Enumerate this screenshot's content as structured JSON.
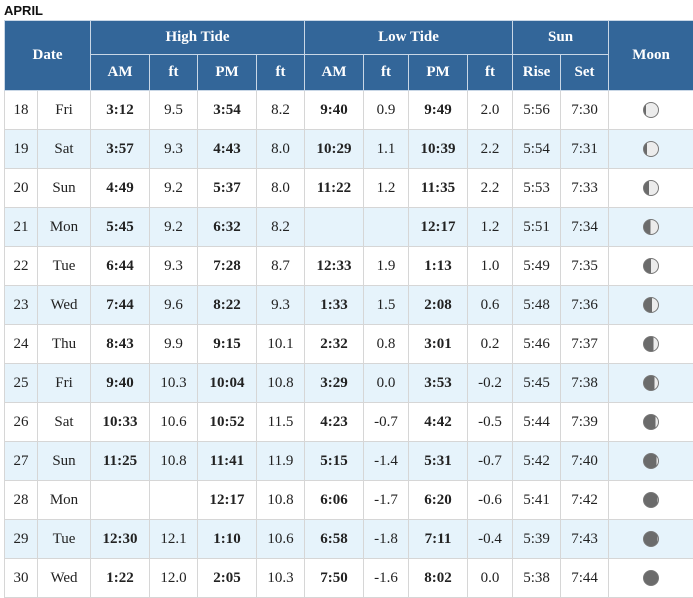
{
  "month": "APRIL",
  "headers": {
    "date": "Date",
    "high_tide": "High Tide",
    "low_tide": "Low Tide",
    "sun": "Sun",
    "moon": "Moon",
    "am": "AM",
    "ft": "ft",
    "pm": "PM",
    "rise": "Rise",
    "set": "Set"
  },
  "rows": [
    {
      "day": "18",
      "dow": "Fri",
      "h_am": "3:12",
      "h_am_ft": "9.5",
      "h_pm": "3:54",
      "h_pm_ft": "8.2",
      "l_am": "9:40",
      "l_am_ft": "0.9",
      "l_pm": "9:49",
      "l_pm_ft": "2.0",
      "rise": "5:56",
      "set": "7:30",
      "moon": 0.85
    },
    {
      "day": "19",
      "dow": "Sat",
      "h_am": "3:57",
      "h_am_ft": "9.3",
      "h_pm": "4:43",
      "h_pm_ft": "8.0",
      "l_am": "10:29",
      "l_am_ft": "1.1",
      "l_pm": "10:39",
      "l_pm_ft": "2.2",
      "rise": "5:54",
      "set": "7:31",
      "moon": 0.78
    },
    {
      "day": "20",
      "dow": "Sun",
      "h_am": "4:49",
      "h_am_ft": "9.2",
      "h_pm": "5:37",
      "h_pm_ft": "8.0",
      "l_am": "11:22",
      "l_am_ft": "1.2",
      "l_pm": "11:35",
      "l_pm_ft": "2.2",
      "rise": "5:53",
      "set": "7:33",
      "moon": 0.65
    },
    {
      "day": "21",
      "dow": "Mon",
      "h_am": "5:45",
      "h_am_ft": "9.2",
      "h_pm": "6:32",
      "h_pm_ft": "8.2",
      "l_am": "",
      "l_am_ft": "",
      "l_pm": "12:17",
      "l_pm_ft": "1.2",
      "rise": "5:51",
      "set": "7:34",
      "moon": 0.55
    },
    {
      "day": "22",
      "dow": "Tue",
      "h_am": "6:44",
      "h_am_ft": "9.3",
      "h_pm": "7:28",
      "h_pm_ft": "8.7",
      "l_am": "12:33",
      "l_am_ft": "1.9",
      "l_pm": "1:13",
      "l_pm_ft": "1.0",
      "rise": "5:49",
      "set": "7:35",
      "moon": 0.5
    },
    {
      "day": "23",
      "dow": "Wed",
      "h_am": "7:44",
      "h_am_ft": "9.6",
      "h_pm": "8:22",
      "h_pm_ft": "9.3",
      "l_am": "1:33",
      "l_am_ft": "1.5",
      "l_pm": "2:08",
      "l_pm_ft": "0.6",
      "rise": "5:48",
      "set": "7:36",
      "moon": 0.42
    },
    {
      "day": "24",
      "dow": "Thu",
      "h_am": "8:43",
      "h_am_ft": "9.9",
      "h_pm": "9:15",
      "h_pm_ft": "10.1",
      "l_am": "2:32",
      "l_am_ft": "0.8",
      "l_pm": "3:01",
      "l_pm_ft": "0.2",
      "rise": "5:46",
      "set": "7:37",
      "moon": 0.33
    },
    {
      "day": "25",
      "dow": "Fri",
      "h_am": "9:40",
      "h_am_ft": "10.3",
      "h_pm": "10:04",
      "h_pm_ft": "10.8",
      "l_am": "3:29",
      "l_am_ft": "0.0",
      "l_pm": "3:53",
      "l_pm_ft": "-0.2",
      "rise": "5:45",
      "set": "7:38",
      "moon": 0.25
    },
    {
      "day": "26",
      "dow": "Sat",
      "h_am": "10:33",
      "h_am_ft": "10.6",
      "h_pm": "10:52",
      "h_pm_ft": "11.5",
      "l_am": "4:23",
      "l_am_ft": "-0.7",
      "l_pm": "4:42",
      "l_pm_ft": "-0.5",
      "rise": "5:44",
      "set": "7:39",
      "moon": 0.18
    },
    {
      "day": "27",
      "dow": "Sun",
      "h_am": "11:25",
      "h_am_ft": "10.8",
      "h_pm": "11:41",
      "h_pm_ft": "11.9",
      "l_am": "5:15",
      "l_am_ft": "-1.4",
      "l_pm": "5:31",
      "l_pm_ft": "-0.7",
      "rise": "5:42",
      "set": "7:40",
      "moon": 0.1
    },
    {
      "day": "28",
      "dow": "Mon",
      "h_am": "",
      "h_am_ft": "",
      "h_pm": "12:17",
      "h_pm_ft": "10.8",
      "l_am": "6:06",
      "l_am_ft": "-1.7",
      "l_pm": "6:20",
      "l_pm_ft": "-0.6",
      "rise": "5:41",
      "set": "7:42",
      "moon": 0.05
    },
    {
      "day": "29",
      "dow": "Tue",
      "h_am": "12:30",
      "h_am_ft": "12.1",
      "h_pm": "1:10",
      "h_pm_ft": "10.6",
      "l_am": "6:58",
      "l_am_ft": "-1.8",
      "l_pm": "7:11",
      "l_pm_ft": "-0.4",
      "rise": "5:39",
      "set": "7:43",
      "moon": 0.02
    },
    {
      "day": "30",
      "dow": "Wed",
      "h_am": "1:22",
      "h_am_ft": "12.0",
      "h_pm": "2:05",
      "h_pm_ft": "10.3",
      "l_am": "7:50",
      "l_am_ft": "-1.6",
      "l_pm": "8:02",
      "l_pm_ft": "0.0",
      "rise": "5:38",
      "set": "7:44",
      "moon": 0.0
    }
  ]
}
